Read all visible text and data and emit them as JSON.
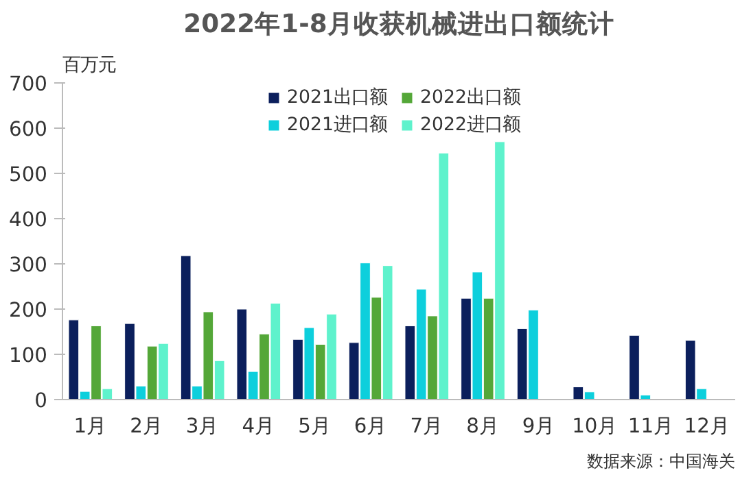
{
  "chart_data": {
    "type": "bar",
    "title": "2022年1-8月收获机械进出口额统计",
    "ylabel": "百万元",
    "categories": [
      "1月",
      "2月",
      "3月",
      "4月",
      "5月",
      "6月",
      "7月",
      "8月",
      "9月",
      "10月",
      "11月",
      "12月"
    ],
    "series": [
      {
        "name": "2021出口额",
        "color": "#0b1f5c",
        "values": [
          176,
          168,
          318,
          200,
          133,
          126,
          163,
          224,
          157,
          28,
          142,
          131
        ]
      },
      {
        "name": "2021进口额",
        "color": "#0dcfdc",
        "values": [
          18,
          30,
          30,
          62,
          159,
          302,
          244,
          282,
          198,
          17,
          10,
          24
        ]
      },
      {
        "name": "2022出口额",
        "color": "#54a738",
        "values": [
          163,
          118,
          194,
          145,
          122,
          226,
          185,
          224,
          null,
          null,
          null,
          null
        ]
      },
      {
        "name": "2022进口额",
        "color": "#5ef2cc",
        "values": [
          24,
          124,
          86,
          213,
          189,
          296,
          545,
          570,
          null,
          null,
          null,
          null
        ]
      }
    ],
    "ylim": [
      0,
      700
    ],
    "yticks": [
      0,
      100,
      200,
      300,
      400,
      500,
      600,
      700
    ],
    "grid": false,
    "legend": "top",
    "annotations": [
      "数据来源：中国海关"
    ]
  }
}
